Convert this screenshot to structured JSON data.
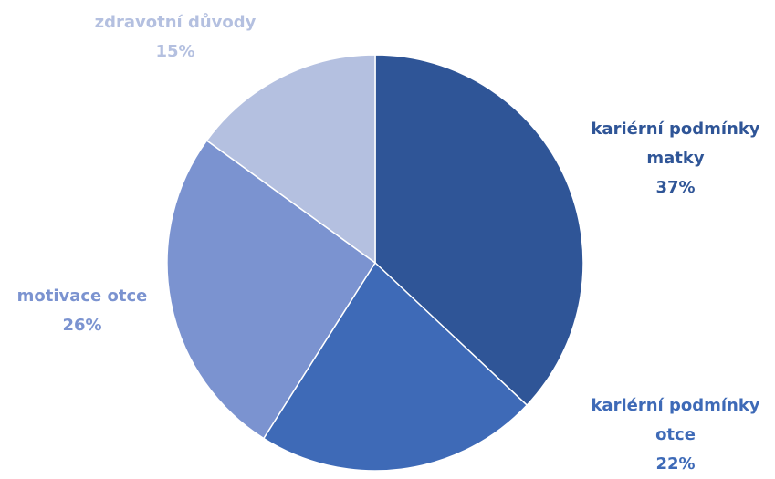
{
  "chart_data": {
    "type": "pie",
    "categories": [
      "kariérní podmínky matky",
      "kariérní podmínky otce",
      "motivace otce",
      "zdravotní důvody"
    ],
    "values": [
      37,
      22,
      26,
      15
    ],
    "value_labels": [
      "37%",
      "22%",
      "26%",
      "15%"
    ],
    "colors": [
      "#2f5597",
      "#3e6ab7",
      "#7b93d0",
      "#b4c0e0"
    ]
  }
}
